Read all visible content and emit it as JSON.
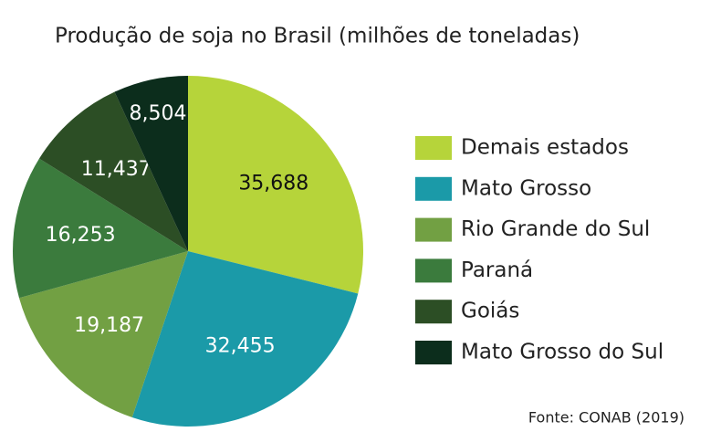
{
  "chart_data": {
    "type": "pie",
    "title": "Produção de soja no Brasil (milhões de toneladas)",
    "source": "Fonte: CONAB (2019)",
    "categories": [
      "Demais estados",
      "Mato Grosso",
      "Rio Grande do Sul",
      "Paraná",
      "Goiás",
      "Mato Grosso do Sul"
    ],
    "values": [
      35.688,
      32.455,
      19.187,
      16.253,
      11.437,
      8.504
    ],
    "value_labels": [
      "35,688",
      "32,455",
      "19,187",
      "16,253",
      "11,437",
      "8,504"
    ],
    "colors": [
      "#b6d43a",
      "#1b9aa8",
      "#72a043",
      "#3b7b3d",
      "#2c4e25",
      "#0c2d1c"
    ],
    "legend": "right"
  }
}
